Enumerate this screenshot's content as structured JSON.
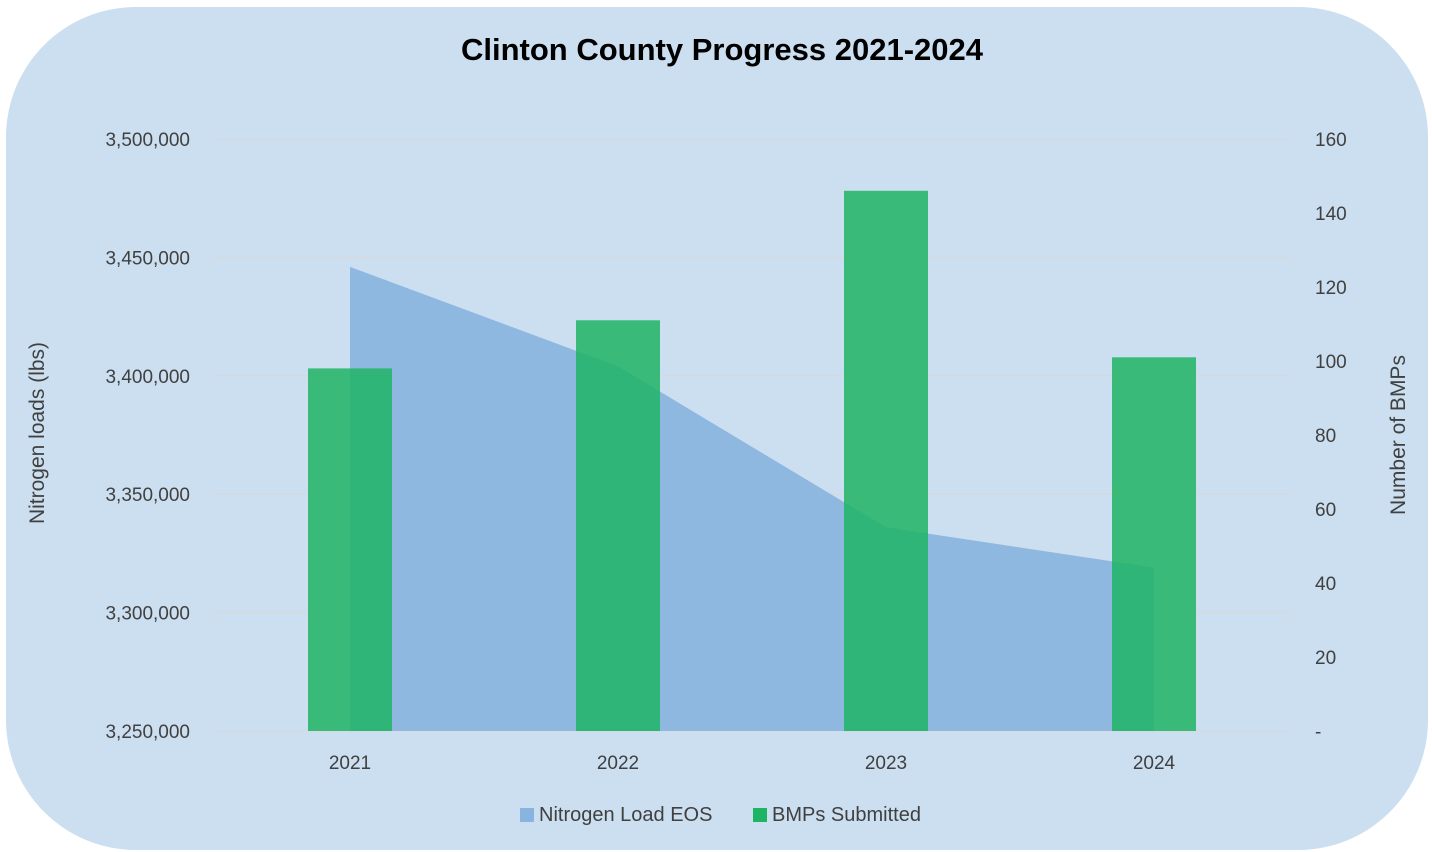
{
  "chart_data": {
    "type": "bar",
    "title": "Clinton County Progress 2021-2024",
    "categories": [
      "2021",
      "2022",
      "2023",
      "2024"
    ],
    "series": [
      {
        "name": "Nitrogen Load EOS",
        "type": "area",
        "axis": "left",
        "values": [
          3446000,
          3404000,
          3336000,
          3319000
        ],
        "color": "#8ab4e0"
      },
      {
        "name": "BMPs Submitted",
        "type": "bar",
        "axis": "right",
        "values": [
          98,
          111,
          146,
          101
        ],
        "color": "#1eb464"
      }
    ],
    "y_left": {
      "label": "Nitrogen loads (lbs)",
      "range": [
        3250000,
        3500000
      ],
      "ticks": [
        "3,250,000",
        "3,300,000",
        "3,350,000",
        "3,400,000",
        "3,450,000",
        "3,500,000"
      ]
    },
    "y_right": {
      "label": "Number of BMPs",
      "range": [
        0,
        160
      ],
      "ticks": [
        "-",
        "20",
        "40",
        "60",
        "80",
        "100",
        "120",
        "140",
        "160"
      ]
    },
    "grid": true,
    "legend": "bottom-center"
  }
}
